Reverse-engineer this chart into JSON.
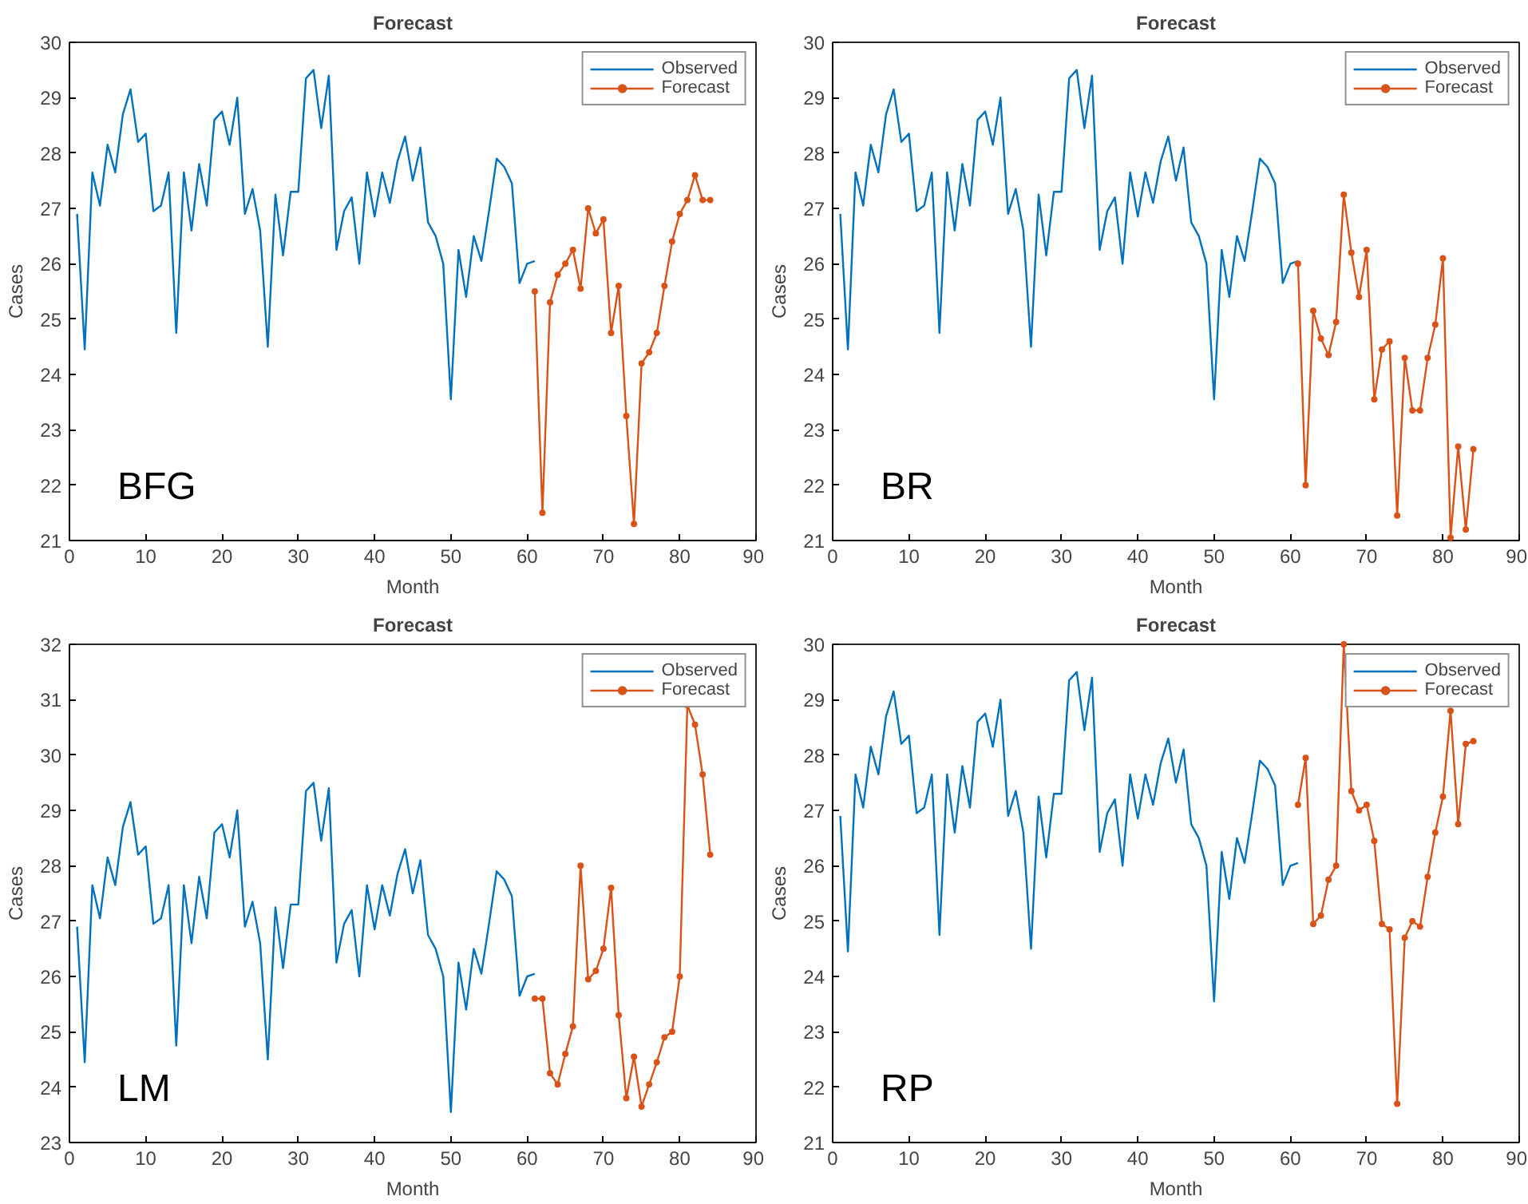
{
  "chart_data": [
    {
      "type": "line",
      "title": "Forecast",
      "xlabel": "Month",
      "ylabel": "Cases",
      "xlim": [
        0,
        90
      ],
      "ylim": [
        21,
        30
      ],
      "xticks": [
        0,
        10,
        20,
        30,
        40,
        50,
        60,
        70,
        80,
        90
      ],
      "yticks": [
        21,
        22,
        23,
        24,
        25,
        26,
        27,
        28,
        29,
        30
      ],
      "legend": "top right",
      "grid": false,
      "annotations": [
        "BFG"
      ],
      "series": [
        {
          "name": "Observed",
          "color": "#0072bd",
          "marker": "none",
          "x": [
            1,
            2,
            3,
            4,
            5,
            6,
            7,
            8,
            9,
            10,
            11,
            12,
            13,
            14,
            15,
            16,
            17,
            18,
            19,
            20,
            21,
            22,
            23,
            24,
            25,
            26,
            27,
            28,
            29,
            30,
            31,
            32,
            33,
            34,
            35,
            36,
            37,
            38,
            39,
            40,
            41,
            42,
            43,
            44,
            45,
            46,
            47,
            48,
            49,
            50,
            51,
            52,
            53,
            54,
            55,
            56,
            57,
            58,
            59,
            60,
            61
          ],
          "values": [
            26.9,
            24.45,
            27.65,
            27.05,
            28.15,
            27.65,
            28.7,
            29.15,
            28.2,
            28.35,
            26.95,
            27.05,
            27.65,
            24.75,
            27.65,
            26.6,
            27.8,
            27.05,
            28.6,
            28.75,
            28.15,
            29.0,
            26.9,
            27.35,
            26.6,
            24.5,
            27.25,
            26.15,
            27.3,
            27.3,
            29.35,
            29.5,
            28.45,
            29.4,
            26.25,
            26.95,
            27.2,
            26.0,
            27.65,
            26.85,
            27.65,
            27.1,
            27.85,
            28.3,
            27.5,
            28.1,
            26.75,
            26.5,
            26.0,
            23.55,
            26.25,
            25.4,
            26.5,
            26.05,
            26.95,
            27.9,
            27.75,
            27.45,
            25.65,
            26.0,
            26.05
          ]
        },
        {
          "name": "Forecast",
          "color": "#d95319",
          "marker": "circle",
          "x": [
            61,
            62,
            63,
            64,
            65,
            66,
            67,
            68,
            69,
            70,
            71,
            72,
            73,
            74,
            75,
            76,
            77,
            78,
            79,
            80,
            81,
            82,
            83,
            84
          ],
          "values": [
            25.5,
            21.5,
            25.3,
            25.8,
            26.0,
            26.25,
            25.55,
            27.0,
            26.55,
            26.8,
            24.75,
            25.6,
            23.25,
            21.3,
            24.2,
            24.4,
            24.75,
            25.6,
            26.4,
            26.9,
            27.15,
            27.6,
            27.15,
            27.15
          ]
        }
      ]
    },
    {
      "type": "line",
      "title": "Forecast",
      "xlabel": "Month",
      "ylabel": "Cases",
      "xlim": [
        0,
        90
      ],
      "ylim": [
        21,
        30
      ],
      "xticks": [
        0,
        10,
        20,
        30,
        40,
        50,
        60,
        70,
        80,
        90
      ],
      "yticks": [
        21,
        22,
        23,
        24,
        25,
        26,
        27,
        28,
        29,
        30
      ],
      "legend": "top right",
      "grid": false,
      "annotations": [
        "BR"
      ],
      "series": [
        {
          "name": "Observed",
          "color": "#0072bd",
          "marker": "none",
          "x": [
            1,
            2,
            3,
            4,
            5,
            6,
            7,
            8,
            9,
            10,
            11,
            12,
            13,
            14,
            15,
            16,
            17,
            18,
            19,
            20,
            21,
            22,
            23,
            24,
            25,
            26,
            27,
            28,
            29,
            30,
            31,
            32,
            33,
            34,
            35,
            36,
            37,
            38,
            39,
            40,
            41,
            42,
            43,
            44,
            45,
            46,
            47,
            48,
            49,
            50,
            51,
            52,
            53,
            54,
            55,
            56,
            57,
            58,
            59,
            60,
            61
          ],
          "values": [
            26.9,
            24.45,
            27.65,
            27.05,
            28.15,
            27.65,
            28.7,
            29.15,
            28.2,
            28.35,
            26.95,
            27.05,
            27.65,
            24.75,
            27.65,
            26.6,
            27.8,
            27.05,
            28.6,
            28.75,
            28.15,
            29.0,
            26.9,
            27.35,
            26.6,
            24.5,
            27.25,
            26.15,
            27.3,
            27.3,
            29.35,
            29.5,
            28.45,
            29.4,
            26.25,
            26.95,
            27.2,
            26.0,
            27.65,
            26.85,
            27.65,
            27.1,
            27.85,
            28.3,
            27.5,
            28.1,
            26.75,
            26.5,
            26.0,
            23.55,
            26.25,
            25.4,
            26.5,
            26.05,
            26.95,
            27.9,
            27.75,
            27.45,
            25.65,
            26.0,
            26.05
          ]
        },
        {
          "name": "Forecast",
          "color": "#d95319",
          "marker": "circle",
          "x": [
            61,
            62,
            63,
            64,
            65,
            66,
            67,
            68,
            69,
            70,
            71,
            72,
            73,
            74,
            75,
            76,
            77,
            78,
            79,
            80,
            81,
            82,
            83,
            84
          ],
          "values": [
            26.0,
            22.0,
            25.15,
            24.65,
            24.35,
            24.95,
            27.25,
            26.2,
            25.4,
            26.25,
            23.55,
            24.45,
            24.6,
            21.45,
            24.3,
            23.35,
            23.35,
            24.3,
            24.9,
            26.1,
            21.05,
            22.7,
            21.2,
            22.65
          ]
        }
      ]
    },
    {
      "type": "line",
      "title": "Forecast",
      "xlabel": "Month",
      "ylabel": "Cases",
      "xlim": [
        0,
        90
      ],
      "ylim": [
        23,
        32
      ],
      "xticks": [
        0,
        10,
        20,
        30,
        40,
        50,
        60,
        70,
        80,
        90
      ],
      "yticks": [
        23,
        24,
        25,
        26,
        27,
        28,
        29,
        30,
        31,
        32
      ],
      "legend": "top right",
      "grid": false,
      "annotations": [
        "LM"
      ],
      "series": [
        {
          "name": "Observed",
          "color": "#0072bd",
          "marker": "none",
          "x": [
            1,
            2,
            3,
            4,
            5,
            6,
            7,
            8,
            9,
            10,
            11,
            12,
            13,
            14,
            15,
            16,
            17,
            18,
            19,
            20,
            21,
            22,
            23,
            24,
            25,
            26,
            27,
            28,
            29,
            30,
            31,
            32,
            33,
            34,
            35,
            36,
            37,
            38,
            39,
            40,
            41,
            42,
            43,
            44,
            45,
            46,
            47,
            48,
            49,
            50,
            51,
            52,
            53,
            54,
            55,
            56,
            57,
            58,
            59,
            60,
            61
          ],
          "values": [
            26.9,
            24.45,
            27.65,
            27.05,
            28.15,
            27.65,
            28.7,
            29.15,
            28.2,
            28.35,
            26.95,
            27.05,
            27.65,
            24.75,
            27.65,
            26.6,
            27.8,
            27.05,
            28.6,
            28.75,
            28.15,
            29.0,
            26.9,
            27.35,
            26.6,
            24.5,
            27.25,
            26.15,
            27.3,
            27.3,
            29.35,
            29.5,
            28.45,
            29.4,
            26.25,
            26.95,
            27.2,
            26.0,
            27.65,
            26.85,
            27.65,
            27.1,
            27.85,
            28.3,
            27.5,
            28.1,
            26.75,
            26.5,
            26.0,
            23.55,
            26.25,
            25.4,
            26.5,
            26.05,
            26.95,
            27.9,
            27.75,
            27.45,
            25.65,
            26.0,
            26.05
          ]
        },
        {
          "name": "Forecast",
          "color": "#d95319",
          "marker": "circle",
          "x": [
            61,
            62,
            63,
            64,
            65,
            66,
            67,
            68,
            69,
            70,
            71,
            72,
            73,
            74,
            75,
            76,
            77,
            78,
            79,
            80,
            81,
            82,
            83,
            84
          ],
          "values": [
            25.6,
            25.6,
            24.25,
            24.05,
            24.6,
            25.1,
            28.0,
            25.95,
            26.1,
            26.5,
            27.6,
            25.3,
            23.8,
            24.55,
            23.65,
            24.05,
            24.45,
            24.9,
            25.0,
            26.0,
            30.9,
            30.55,
            29.65,
            28.2
          ]
        }
      ]
    },
    {
      "type": "line",
      "title": "Forecast",
      "xlabel": "Month",
      "ylabel": "Cases",
      "xlim": [
        0,
        90
      ],
      "ylim": [
        21,
        30
      ],
      "xticks": [
        0,
        10,
        20,
        30,
        40,
        50,
        60,
        70,
        80,
        90
      ],
      "yticks": [
        21,
        22,
        23,
        24,
        25,
        26,
        27,
        28,
        29,
        30
      ],
      "legend": "top right",
      "grid": false,
      "annotations": [
        "RP"
      ],
      "series": [
        {
          "name": "Observed",
          "color": "#0072bd",
          "marker": "none",
          "x": [
            1,
            2,
            3,
            4,
            5,
            6,
            7,
            8,
            9,
            10,
            11,
            12,
            13,
            14,
            15,
            16,
            17,
            18,
            19,
            20,
            21,
            22,
            23,
            24,
            25,
            26,
            27,
            28,
            29,
            30,
            31,
            32,
            33,
            34,
            35,
            36,
            37,
            38,
            39,
            40,
            41,
            42,
            43,
            44,
            45,
            46,
            47,
            48,
            49,
            50,
            51,
            52,
            53,
            54,
            55,
            56,
            57,
            58,
            59,
            60,
            61
          ],
          "values": [
            26.9,
            24.45,
            27.65,
            27.05,
            28.15,
            27.65,
            28.7,
            29.15,
            28.2,
            28.35,
            26.95,
            27.05,
            27.65,
            24.75,
            27.65,
            26.6,
            27.8,
            27.05,
            28.6,
            28.75,
            28.15,
            29.0,
            26.9,
            27.35,
            26.6,
            24.5,
            27.25,
            26.15,
            27.3,
            27.3,
            29.35,
            29.5,
            28.45,
            29.4,
            26.25,
            26.95,
            27.2,
            26.0,
            27.65,
            26.85,
            27.65,
            27.1,
            27.85,
            28.3,
            27.5,
            28.1,
            26.75,
            26.5,
            26.0,
            23.55,
            26.25,
            25.4,
            26.5,
            26.05,
            26.95,
            27.9,
            27.75,
            27.45,
            25.65,
            26.0,
            26.05
          ]
        },
        {
          "name": "Forecast",
          "color": "#d95319",
          "marker": "circle",
          "x": [
            61,
            62,
            63,
            64,
            65,
            66,
            67,
            68,
            69,
            70,
            71,
            72,
            73,
            74,
            75,
            76,
            77,
            78,
            79,
            80,
            81,
            82,
            83,
            84
          ],
          "values": [
            27.1,
            27.95,
            24.95,
            25.1,
            25.75,
            26.0,
            30.0,
            27.35,
            27.0,
            27.1,
            26.45,
            24.95,
            24.85,
            21.7,
            24.7,
            25.0,
            24.9,
            25.8,
            26.6,
            27.25,
            28.8,
            26.75,
            28.2,
            28.25
          ]
        }
      ]
    }
  ]
}
